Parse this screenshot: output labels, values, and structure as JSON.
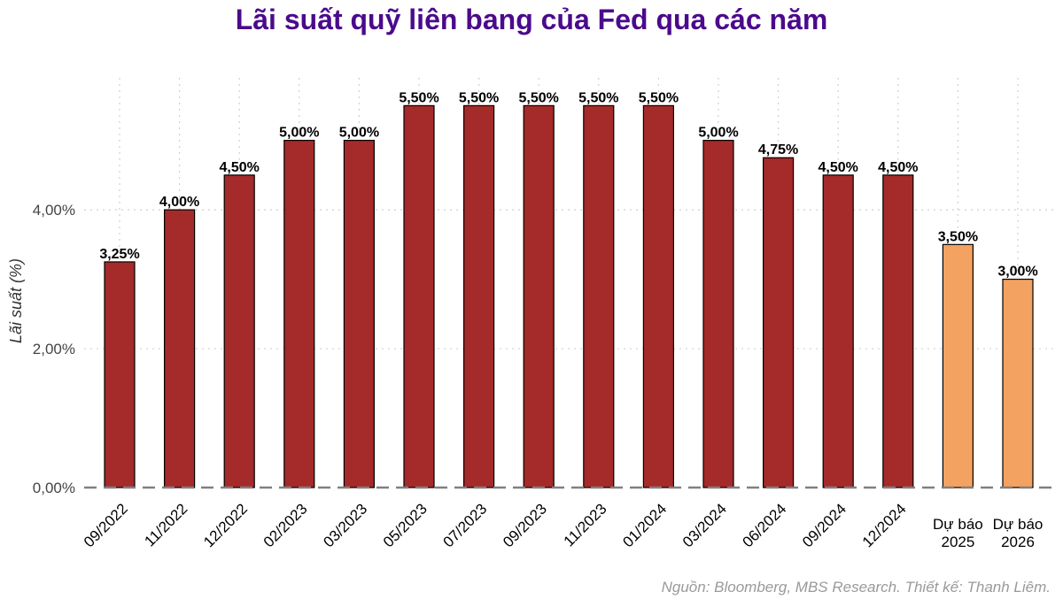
{
  "chart_data": {
    "type": "bar",
    "title": "Lãi suất quỹ liên bang của Fed qua các năm",
    "ylabel": "Lãi suất (%)",
    "xlabel": "",
    "categories": [
      "09/2022",
      "11/2022",
      "12/2022",
      "02/2023",
      "03/2023",
      "05/2023",
      "07/2023",
      "09/2023",
      "11/2023",
      "01/2024",
      "03/2024",
      "06/2024",
      "09/2024",
      "12/2024",
      "Dự báo\n2025",
      "Dự báo\n2026"
    ],
    "values": [
      3.25,
      4.0,
      4.5,
      5.0,
      5.0,
      5.5,
      5.5,
      5.5,
      5.5,
      5.5,
      5.0,
      4.75,
      4.5,
      4.5,
      3.5,
      3.0
    ],
    "value_labels": [
      "3,25%",
      "4,00%",
      "4,50%",
      "5,00%",
      "5,00%",
      "5,50%",
      "5,50%",
      "5,50%",
      "5,50%",
      "5,50%",
      "5,00%",
      "4,75%",
      "4,50%",
      "4,50%",
      "3,50%",
      "3,00%"
    ],
    "forecast": [
      false,
      false,
      false,
      false,
      false,
      false,
      false,
      false,
      false,
      false,
      false,
      false,
      false,
      false,
      true,
      true
    ],
    "yticks": [
      0,
      2,
      4
    ],
    "ytick_labels": [
      "0,00%",
      "2,00%",
      "4,00%"
    ],
    "ylim": [
      0,
      5.9
    ],
    "grid": true,
    "colors": {
      "actual": "#a52a2a",
      "forecast": "#f4a261",
      "title": "#4b0a8c",
      "baseline": "#808080"
    }
  },
  "source_note": "Nguồn: Bloomberg, MBS Research. Thiết kế: Thanh Liêm."
}
